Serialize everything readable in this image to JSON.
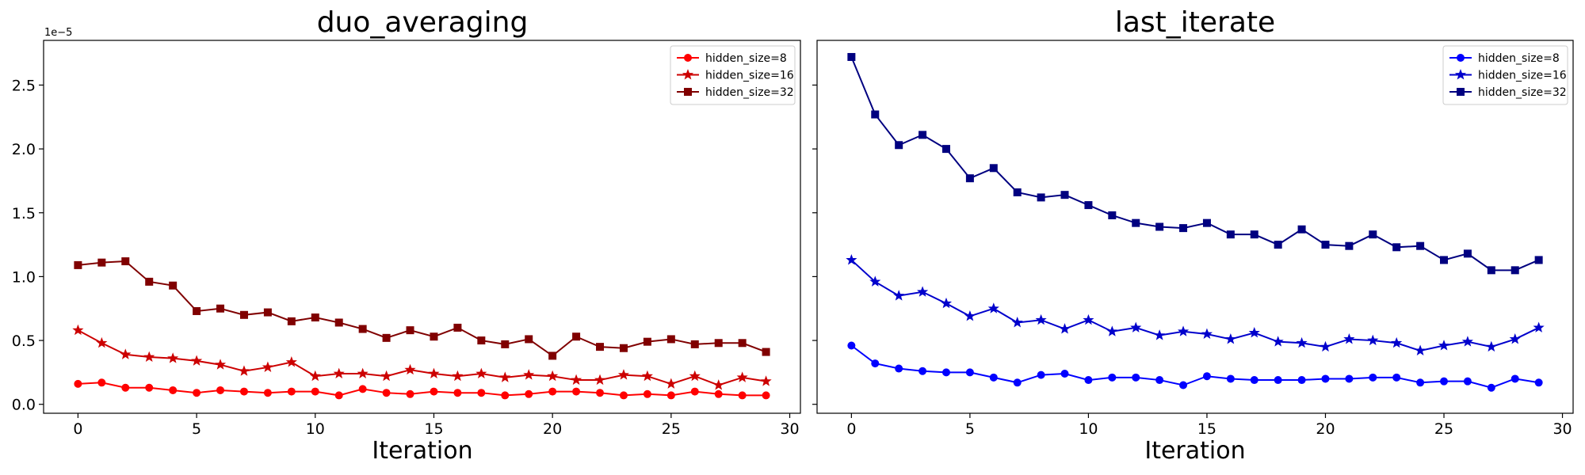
{
  "chart_data": [
    {
      "type": "line",
      "title": "duo_averaging",
      "xlabel": "Iteration",
      "ylabel": "",
      "xlim": [
        -1.45,
        30.45
      ],
      "ylim": [
        -0.07,
        2.85
      ],
      "y_offset_text": "1e−5",
      "xticks": [
        0,
        5,
        10,
        15,
        20,
        25,
        30
      ],
      "yticks": [
        0.0,
        0.5,
        1.0,
        1.5,
        2.0,
        2.5
      ],
      "ytick_labels": [
        "0.0",
        "0.5",
        "1.0",
        "1.5",
        "2.0",
        "2.5"
      ],
      "legend_position": "top-right",
      "x": [
        0,
        1,
        2,
        3,
        4,
        5,
        6,
        7,
        8,
        9,
        10,
        11,
        12,
        13,
        14,
        15,
        16,
        17,
        18,
        19,
        20,
        21,
        22,
        23,
        24,
        25,
        26,
        27,
        28,
        29
      ],
      "series": [
        {
          "name": "hidden_size=8",
          "color": "#ff0000",
          "marker": "circle",
          "values": [
            0.16,
            0.17,
            0.13,
            0.13,
            0.11,
            0.09,
            0.11,
            0.1,
            0.09,
            0.1,
            0.1,
            0.07,
            0.12,
            0.09,
            0.08,
            0.1,
            0.09,
            0.09,
            0.07,
            0.08,
            0.1,
            0.1,
            0.09,
            0.07,
            0.08,
            0.07,
            0.1,
            0.08,
            0.07,
            0.07
          ]
        },
        {
          "name": "hidden_size=16",
          "color": "#cc0000",
          "marker": "star",
          "values": [
            0.58,
            0.48,
            0.39,
            0.37,
            0.36,
            0.34,
            0.31,
            0.26,
            0.29,
            0.33,
            0.22,
            0.24,
            0.24,
            0.22,
            0.27,
            0.24,
            0.22,
            0.24,
            0.21,
            0.23,
            0.22,
            0.19,
            0.19,
            0.23,
            0.22,
            0.16,
            0.22,
            0.15,
            0.21,
            0.18
          ]
        },
        {
          "name": "hidden_size=32",
          "color": "#800000",
          "marker": "square",
          "values": [
            1.09,
            1.11,
            1.12,
            0.96,
            0.93,
            0.73,
            0.75,
            0.7,
            0.72,
            0.65,
            0.68,
            0.64,
            0.59,
            0.52,
            0.58,
            0.53,
            0.6,
            0.5,
            0.47,
            0.51,
            0.38,
            0.53,
            0.45,
            0.44,
            0.49,
            0.51,
            0.47,
            0.48,
            0.48,
            0.41
          ]
        }
      ]
    },
    {
      "type": "line",
      "title": "last_iterate",
      "xlabel": "Iteration",
      "ylabel": "",
      "xlim": [
        -1.45,
        30.45
      ],
      "ylim": [
        -0.07,
        2.85
      ],
      "xticks": [
        0,
        5,
        10,
        15,
        20,
        25,
        30
      ],
      "legend_position": "top-right",
      "x": [
        0,
        1,
        2,
        3,
        4,
        5,
        6,
        7,
        8,
        9,
        10,
        11,
        12,
        13,
        14,
        15,
        16,
        17,
        18,
        19,
        20,
        21,
        22,
        23,
        24,
        25,
        26,
        27,
        28,
        29
      ],
      "series": [
        {
          "name": "hidden_size=8",
          "color": "#0000ff",
          "marker": "circle",
          "values": [
            0.46,
            0.32,
            0.28,
            0.26,
            0.25,
            0.25,
            0.21,
            0.17,
            0.23,
            0.24,
            0.19,
            0.21,
            0.21,
            0.19,
            0.15,
            0.22,
            0.2,
            0.19,
            0.19,
            0.19,
            0.2,
            0.2,
            0.21,
            0.21,
            0.17,
            0.18,
            0.18,
            0.13,
            0.2,
            0.17
          ]
        },
        {
          "name": "hidden_size=16",
          "color": "#0000cc",
          "marker": "star",
          "values": [
            1.13,
            0.96,
            0.85,
            0.88,
            0.79,
            0.69,
            0.75,
            0.64,
            0.66,
            0.59,
            0.66,
            0.57,
            0.6,
            0.54,
            0.57,
            0.55,
            0.51,
            0.56,
            0.49,
            0.48,
            0.45,
            0.51,
            0.5,
            0.48,
            0.42,
            0.46,
            0.49,
            0.45,
            0.51,
            0.6
          ]
        },
        {
          "name": "hidden_size=32",
          "color": "#000080",
          "marker": "square",
          "values": [
            2.72,
            2.27,
            2.03,
            2.11,
            2.0,
            1.77,
            1.85,
            1.66,
            1.62,
            1.64,
            1.56,
            1.48,
            1.42,
            1.39,
            1.38,
            1.42,
            1.33,
            1.33,
            1.25,
            1.37,
            1.25,
            1.24,
            1.33,
            1.23,
            1.24,
            1.13,
            1.18,
            1.05,
            1.05,
            1.13
          ]
        }
      ]
    }
  ]
}
